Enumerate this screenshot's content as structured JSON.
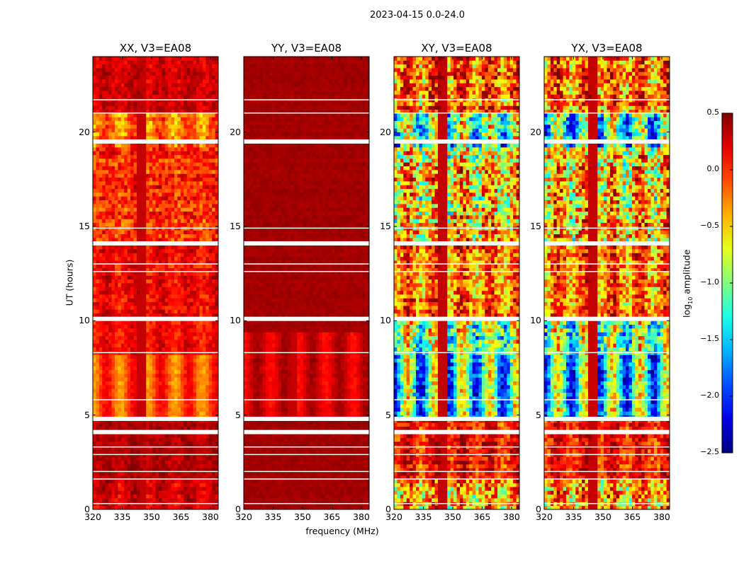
{
  "chart_data": {
    "type": "heatmap",
    "title": "2023-04-15 0.0-24.0",
    "xlabel": "frequency (MHz)",
    "ylabel": "UT (hours)",
    "xlim": [
      320,
      384
    ],
    "ylim": [
      0,
      24
    ],
    "xticks": [
      "320",
      "335",
      "350",
      "365",
      "380"
    ],
    "xtick_values": [
      320,
      335,
      350,
      365,
      380
    ],
    "yticks": [
      "0",
      "5",
      "10",
      "15",
      "20"
    ],
    "ytick_values": [
      0,
      5,
      10,
      15,
      20
    ],
    "colorbar": {
      "label_main": "log",
      "label_sub": "10",
      "label_rest": " amplitude",
      "range": [
        -2.5,
        0.5
      ],
      "ticks": [
        "0.5",
        "0.0",
        "−0.5",
        "−1.0",
        "−1.5",
        "−2.0",
        "−2.5"
      ],
      "tick_values": [
        0.5,
        0.0,
        -0.5,
        -1.0,
        -1.5,
        -2.0,
        -2.5
      ],
      "colormap": "jet"
    },
    "flagged_hours": [
      0.3,
      1.6,
      2.0,
      2.9,
      3.3,
      4.1,
      4.8,
      5.8,
      8.3,
      10.1,
      12.6,
      13.0,
      14.1,
      14.9,
      19.5,
      21.0,
      21.7
    ],
    "panels": [
      {
        "title": "XX, V3=EA08",
        "seed": 11,
        "bands": [
          [
            0,
            1.6,
            0.25,
            0.2,
            0.1
          ],
          [
            1.6,
            4.8,
            0.35,
            0.15,
            0.05
          ],
          [
            4.8,
            8.3,
            -0.1,
            0.12,
            0.25
          ],
          [
            8.3,
            10,
            0.1,
            0.2,
            0.1
          ],
          [
            10,
            14,
            0.15,
            0.25,
            0.1
          ],
          [
            14,
            19.3,
            0.0,
            0.35,
            0.05
          ],
          [
            19.3,
            21,
            -0.2,
            0.3,
            0.2
          ],
          [
            21,
            24,
            0.25,
            0.2,
            0.05
          ]
        ]
      },
      {
        "title": "YY, V3=EA08",
        "seed": 23,
        "bands": [
          [
            0,
            4.8,
            0.4,
            0.05,
            0.0
          ],
          [
            4.8,
            9.5,
            0.25,
            0.08,
            0.15
          ],
          [
            9.5,
            24,
            0.4,
            0.05,
            0.0
          ]
        ]
      },
      {
        "title": "XY, V3=EA08",
        "seed": 37,
        "bands": [
          [
            0,
            1.6,
            -0.3,
            0.8,
            0.3
          ],
          [
            1.6,
            4.8,
            0.1,
            0.4,
            0.2
          ],
          [
            4.8,
            8.3,
            -1.3,
            0.5,
            0.8
          ],
          [
            8.3,
            10,
            -0.9,
            0.8,
            0.5
          ],
          [
            10,
            14,
            -0.2,
            0.6,
            0.3
          ],
          [
            14,
            19.3,
            -0.5,
            0.9,
            0.3
          ],
          [
            19.3,
            21,
            -1.2,
            0.8,
            0.6
          ],
          [
            21,
            24,
            -0.2,
            0.7,
            0.3
          ]
        ]
      },
      {
        "title": "YX, V3=EA08",
        "seed": 53,
        "bands": [
          [
            0,
            1.6,
            -0.3,
            0.8,
            0.3
          ],
          [
            1.6,
            4.8,
            0.1,
            0.4,
            0.2
          ],
          [
            4.8,
            8.3,
            -1.3,
            0.5,
            0.8
          ],
          [
            8.3,
            10,
            -0.9,
            0.8,
            0.5
          ],
          [
            10,
            14,
            -0.2,
            0.6,
            0.3
          ],
          [
            14,
            19.3,
            -0.5,
            0.9,
            0.3
          ],
          [
            19.3,
            21,
            -1.2,
            0.8,
            0.6
          ],
          [
            21,
            24,
            -0.2,
            0.7,
            0.3
          ]
        ]
      }
    ]
  }
}
